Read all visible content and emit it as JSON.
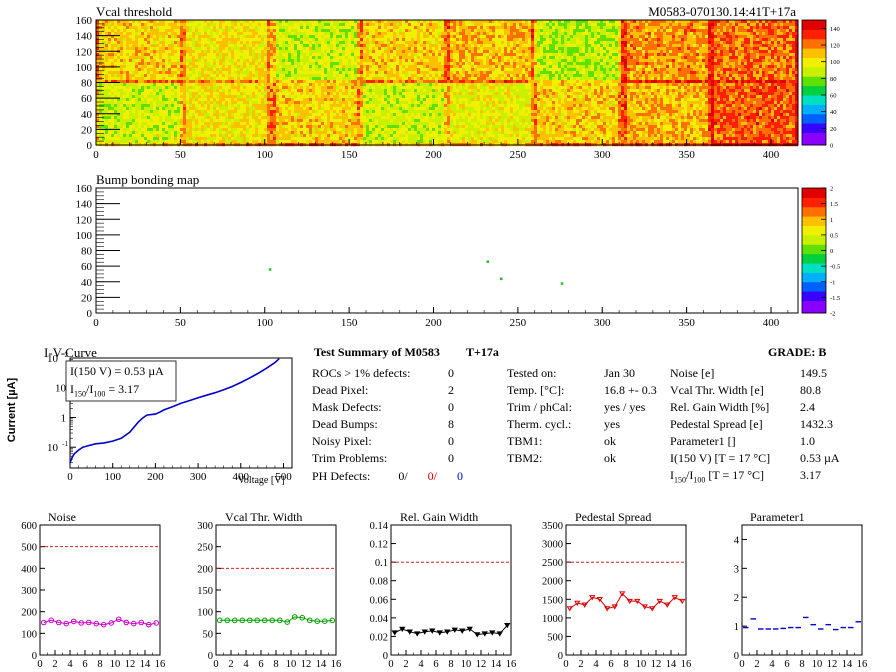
{
  "header": {
    "title": "Vcal threshold",
    "module_tag": "M0583-070130.14:41T+17a"
  },
  "bump_title": "Bump bonding map",
  "iv": {
    "title": "I-V-Curve",
    "ylabel": "Current [µA]",
    "xlabel": "Voltage [V]",
    "box_line1": "I(150 V) = 0.53 µA",
    "box_line2_pre": "I",
    "box_line2_sub1": "150",
    "box_line2_mid": "/I",
    "box_line2_sub2": "100",
    "box_line2_post": " =  3.17"
  },
  "summary": {
    "title": "Test Summary of M0583",
    "tag": "T+17a",
    "grade": "GRADE:  B",
    "left_rows": [
      {
        "label": "ROCs > 1% defects:",
        "value": "0"
      },
      {
        "label": "Dead Pixel:",
        "value": "2"
      },
      {
        "label": "Mask Defects:",
        "value": "0"
      },
      {
        "label": "Dead Bumps:",
        "value": "8"
      },
      {
        "label": "Noisy Pixel:",
        "value": "0"
      },
      {
        "label": "Trim Problems:",
        "value": "0"
      }
    ],
    "ph_label": "PH Defects:",
    "ph_values": [
      "0/",
      "0/",
      "0"
    ],
    "ph_colors": [
      "#000000",
      "#d40000",
      "#0000cc"
    ],
    "mid_rows": [
      {
        "label": "Tested on:",
        "value": "Jan 30"
      },
      {
        "label": "Temp. [°C]:",
        "value": "16.8 +- 0.3"
      },
      {
        "label": "Trim / phCal:",
        "value": "yes / yes"
      },
      {
        "label": "Therm. cycl.:",
        "value": "yes"
      },
      {
        "label": "TBM1:",
        "value": "ok"
      },
      {
        "label": "TBM2:",
        "value": "ok"
      }
    ],
    "right_rows": [
      {
        "label": "Noise [e]",
        "value": "149.5"
      },
      {
        "label": "Vcal Thr. Width [e]",
        "value": "80.8"
      },
      {
        "label": "Rel. Gain Width [%]",
        "value": "2.4"
      },
      {
        "label": "Pedestal Spread [e]",
        "value": "1432.3"
      },
      {
        "label": "Parameter1 []",
        "value": "1.0"
      },
      {
        "label": "I(150 V) [T = 17 °C]",
        "value": "0.53 µA"
      }
    ],
    "ratio_row": {
      "pre": "I",
      "sub1": "150",
      "mid": "/I",
      "sub2": "100",
      "post": " [T = 17 °C]",
      "value": "3.17"
    }
  },
  "chart_data": [
    {
      "type": "heatmap",
      "title": "Vcal threshold",
      "x_ticks": [
        0,
        50,
        100,
        150,
        200,
        250,
        300,
        350,
        400
      ],
      "y_ticks": [
        0,
        20,
        40,
        60,
        80,
        100,
        120,
        140,
        160
      ],
      "xlim": [
        0,
        416
      ],
      "ylim": [
        0,
        160
      ],
      "roc_columns": 8,
      "roc_rows": 2,
      "roc_mean_levels": [
        [
          105,
          100,
          90,
          105,
          110,
          85,
          115,
          120
        ],
        [
          90,
          100,
          105,
          90,
          95,
          105,
          110,
          125
        ]
      ],
      "colorbar_ticks": [
        0,
        20,
        40,
        60,
        80,
        100,
        120,
        140
      ],
      "colorbar_range": [
        0,
        150
      ],
      "palette": [
        "#8a00ff",
        "#3a00ff",
        "#0060ff",
        "#00b0ff",
        "#00e0c0",
        "#00d040",
        "#60e000",
        "#c8f000",
        "#f0f000",
        "#ffc000",
        "#ff7000",
        "#ff2000",
        "#e00000"
      ]
    },
    {
      "type": "heatmap",
      "title": "Bump bonding map",
      "x_ticks": [
        0,
        50,
        100,
        150,
        200,
        250,
        300,
        350,
        400
      ],
      "y_ticks": [
        0,
        20,
        40,
        60,
        80,
        100,
        120,
        140,
        160
      ],
      "xlim": [
        0,
        416
      ],
      "ylim": [
        0,
        160
      ],
      "points": [
        [
          103,
          56
        ],
        [
          232,
          66
        ],
        [
          240,
          44
        ],
        [
          276,
          38
        ]
      ],
      "colorbar_ticks": [
        -2,
        -1.5,
        -1,
        -0.5,
        0,
        0.5,
        1,
        1.5,
        2
      ],
      "colorbar_range": [
        -2,
        2
      ]
    },
    {
      "type": "line",
      "title": "I-V-Curve",
      "xlabel": "Voltage [V]",
      "ylabel": "Current [µA]",
      "y_scale": "log",
      "x_ticks": [
        0,
        100,
        200,
        300,
        400,
        500
      ],
      "y_ticks": [
        "10^-1",
        "1",
        "10",
        "10^2"
      ],
      "xlim": [
        0,
        520
      ],
      "ylim": [
        0.02,
        100
      ],
      "x": [
        0,
        5,
        10,
        20,
        30,
        40,
        60,
        80,
        100,
        120,
        140,
        160,
        170,
        180,
        190,
        200,
        210,
        220,
        240,
        260,
        280,
        300,
        320,
        340,
        360,
        380,
        400,
        420,
        440,
        460,
        480,
        490
      ],
      "y": [
        0.03,
        0.045,
        0.06,
        0.08,
        0.1,
        0.11,
        0.13,
        0.14,
        0.16,
        0.2,
        0.32,
        0.7,
        0.95,
        1.2,
        1.25,
        1.3,
        1.5,
        1.8,
        2.3,
        3.0,
        3.7,
        4.6,
        5.6,
        6.8,
        8.5,
        11,
        15,
        21,
        30,
        45,
        70,
        95
      ],
      "color": "#0000cc"
    },
    {
      "type": "line",
      "title": "Noise",
      "x": [
        0,
        1,
        2,
        3,
        4,
        5,
        6,
        7,
        8,
        9,
        10,
        11,
        12,
        13,
        14,
        15
      ],
      "y": [
        150,
        160,
        150,
        145,
        155,
        148,
        150,
        145,
        140,
        148,
        165,
        150,
        145,
        150,
        140,
        148
      ],
      "ylim": [
        0,
        600
      ],
      "y_ticks": [
        0,
        100,
        200,
        300,
        400,
        500,
        600
      ],
      "x_ticks": [
        0,
        2,
        4,
        6,
        8,
        10,
        12,
        14,
        16
      ],
      "threshold": 500,
      "color": "#cc00cc"
    },
    {
      "type": "line",
      "title": "Vcal Thr. Width",
      "x": [
        0,
        1,
        2,
        3,
        4,
        5,
        6,
        7,
        8,
        9,
        10,
        11,
        12,
        13,
        14,
        15
      ],
      "y": [
        80,
        80,
        80,
        80,
        80,
        80,
        80,
        80,
        80,
        76,
        88,
        86,
        80,
        78,
        78,
        80
      ],
      "ylim": [
        0,
        300
      ],
      "y_ticks": [
        0,
        50,
        100,
        150,
        200,
        250,
        300
      ],
      "x_ticks": [
        0,
        2,
        4,
        6,
        8,
        10,
        12,
        14,
        16
      ],
      "threshold": 200,
      "color": "#00a000"
    },
    {
      "type": "line",
      "title": "Rel. Gain Width",
      "x": [
        0,
        1,
        2,
        3,
        4,
        5,
        6,
        7,
        8,
        9,
        10,
        11,
        12,
        13,
        14,
        15
      ],
      "y": [
        0.024,
        0.028,
        0.025,
        0.023,
        0.025,
        0.026,
        0.024,
        0.025,
        0.027,
        0.026,
        0.028,
        0.022,
        0.023,
        0.024,
        0.023,
        0.032
      ],
      "ylim": [
        0,
        0.14
      ],
      "y_ticks": [
        0,
        0.02,
        0.04,
        0.06,
        0.08,
        0.1,
        0.12,
        0.14
      ],
      "x_ticks": [
        0,
        2,
        4,
        6,
        8,
        10,
        12,
        14,
        16
      ],
      "threshold": 0.1,
      "color": "#000000"
    },
    {
      "type": "line",
      "title": "Pedestal Spread",
      "x": [
        0,
        1,
        2,
        3,
        4,
        5,
        6,
        7,
        8,
        9,
        10,
        11,
        12,
        13,
        14,
        15
      ],
      "y": [
        1250,
        1400,
        1350,
        1550,
        1500,
        1250,
        1300,
        1650,
        1450,
        1450,
        1300,
        1250,
        1450,
        1350,
        1550,
        1450
      ],
      "ylim": [
        0,
        3500
      ],
      "y_ticks": [
        0,
        500,
        1000,
        1500,
        2000,
        2500,
        3000,
        3500
      ],
      "x_ticks": [
        0,
        2,
        4,
        6,
        8,
        10,
        12,
        14,
        16
      ],
      "threshold": 2500,
      "color": "#dd0000"
    },
    {
      "type": "scatter",
      "title": "Parameter1",
      "x": [
        0,
        1,
        2,
        3,
        4,
        5,
        6,
        7,
        8,
        9,
        10,
        11,
        12,
        13,
        14,
        15
      ],
      "y": [
        0.95,
        1.25,
        0.9,
        0.9,
        0.9,
        0.92,
        0.95,
        0.95,
        1.3,
        1.05,
        0.9,
        1.05,
        0.88,
        0.95,
        0.95,
        1.15
      ],
      "ylim": [
        0,
        4.5
      ],
      "y_ticks": [
        0,
        1,
        2,
        3,
        4
      ],
      "x_ticks": [
        0,
        2,
        4,
        6,
        8,
        10,
        12,
        14,
        16
      ],
      "color": "#0000cc"
    }
  ]
}
